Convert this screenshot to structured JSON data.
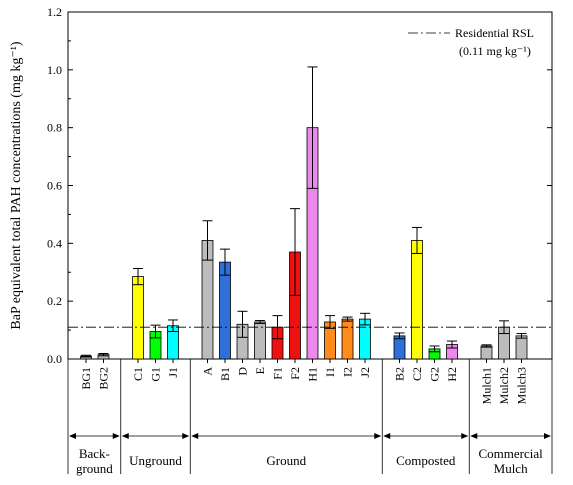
{
  "chart_data": {
    "type": "bar",
    "ylabel": "BaP equivalent total PAH concentrations (mg kg⁻¹)",
    "ylim": [
      0,
      1.2
    ],
    "yticks": [
      "0.0",
      "0.2",
      "0.4",
      "0.6",
      "0.8",
      "1.0",
      "1.2"
    ],
    "grid": false,
    "categories": [
      "BG1",
      "BG2",
      "C1",
      "G1",
      "J1",
      "A",
      "B1",
      "D",
      "E",
      "F1",
      "F2",
      "H1",
      "I1",
      "I2",
      "J2",
      "B2",
      "C2",
      "G2",
      "H2",
      "Mulch1",
      "Mulch2",
      "Mulch3"
    ],
    "values": [
      0.01,
      0.015,
      0.285,
      0.095,
      0.115,
      0.41,
      0.335,
      0.12,
      0.128,
      0.11,
      0.37,
      0.8,
      0.128,
      0.138,
      0.138,
      0.08,
      0.41,
      0.035,
      0.05,
      0.045,
      0.11,
      0.08
    ],
    "errors": [
      0.003,
      0.004,
      0.028,
      0.022,
      0.02,
      0.068,
      0.045,
      0.045,
      0.005,
      0.04,
      0.15,
      0.21,
      0.022,
      0.007,
      0.02,
      0.01,
      0.045,
      0.01,
      0.012,
      0.004,
      0.022,
      0.008
    ],
    "colors": [
      "#bcbcbc",
      "#bcbcbc",
      "#ffff00",
      "#00ff00",
      "#00ffff",
      "#bcbcbc",
      "#2f6fd8",
      "#bcbcbc",
      "#bcbcbc",
      "#ee1111",
      "#ee1111",
      "#ee88ee",
      "#ff8c1a",
      "#ff8c1a",
      "#00ffff",
      "#2f6fd8",
      "#ffff00",
      "#00ff00",
      "#ee88ee",
      "#bcbcbc",
      "#bcbcbc",
      "#bcbcbc"
    ],
    "groups": [
      {
        "label_lines": [
          "Back-",
          "ground"
        ],
        "count": 2
      },
      {
        "label_lines": [
          "Unground"
        ],
        "count": 3
      },
      {
        "label_lines": [
          "Ground"
        ],
        "count": 10
      },
      {
        "label_lines": [
          "Composted"
        ],
        "count": 4
      },
      {
        "label_lines": [
          "Commercial",
          "Mulch"
        ],
        "count": 3
      }
    ],
    "reference_line": {
      "value": 0.11,
      "label": "Residential RSL",
      "label2": "(0.11 mg kg⁻¹)"
    },
    "legend_placement": "top-right"
  }
}
